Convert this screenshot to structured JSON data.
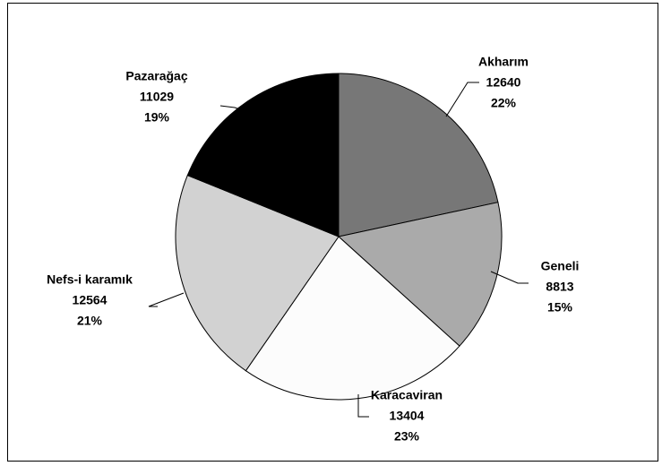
{
  "chart_data": {
    "type": "pie",
    "categories": [
      "Akharım",
      "Geneli",
      "Karacaviran",
      "Nefs-i karamık",
      "Pazarağaç"
    ],
    "values": [
      12640,
      8813,
      13404,
      12564,
      11029
    ],
    "percent_labels": [
      "22%",
      "15%",
      "23%",
      "21%",
      "19%"
    ],
    "colors": [
      "#777777",
      "#aaaaaa",
      "#fcfcfc",
      "#d2d2d2",
      "#000000"
    ]
  }
}
